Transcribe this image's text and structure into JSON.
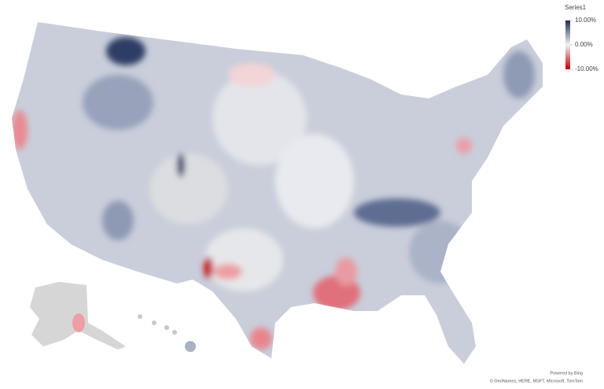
{
  "legend": {
    "title": "Series1",
    "range": [
      -10,
      10
    ],
    "stops": [
      {
        "value": 10,
        "label": "10.00%",
        "color": "#1f2d54"
      },
      {
        "value": 0,
        "label": "0.00%",
        "color": "#f2f2f2"
      },
      {
        "value": -10,
        "label": "-10.00%",
        "color": "#c00000"
      }
    ]
  },
  "attribution": {
    "powered_by": "Powered by Bing",
    "sources": "© GeoNames, HERE, MSFT, Microsoft, TomTom"
  }
}
